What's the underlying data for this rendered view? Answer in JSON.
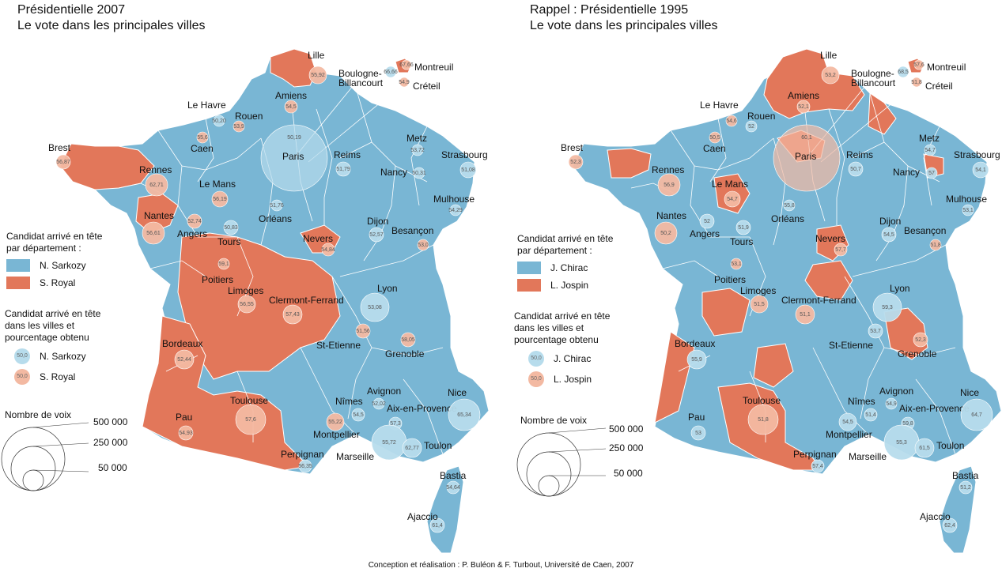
{
  "colors": {
    "blue": "#79b6d4",
    "orange": "#e2775a",
    "light_blue": "#b7dcec",
    "light_orange": "#f3b9a2"
  },
  "left": {
    "title_line1": "Présidentielle 2007",
    "title_line2": "Le vote dans les principales villes",
    "legend": {
      "dept_head": "Candidat arrivé en tête\npar département :",
      "dept_items": [
        "N. Sarkozy",
        "S. Royal"
      ],
      "city_head": "Candidat arrivé en tête\ndans les villes et\npourcentage obtenu",
      "city_items": [
        "N. Sarkozy",
        "S. Royal"
      ],
      "sample_value": "50,0"
    },
    "size_legend": {
      "title": "Nombre de voix",
      "values": [
        "500 000",
        "250 000",
        "50 000"
      ]
    },
    "cities": [
      {
        "name": "Lille",
        "pct": "55,92"
      },
      {
        "name": "Boulogne-\nBillancourt",
        "pct": "66,66"
      },
      {
        "name": "Montreuil",
        "pct": "67,66"
      },
      {
        "name": "Créteil",
        "pct": "54,9"
      },
      {
        "name": "Amiens",
        "pct": "54,5"
      },
      {
        "name": "Le Havre",
        "pct": "50,20"
      },
      {
        "name": "Rouen",
        "pct": "53,9"
      },
      {
        "name": "Caen",
        "pct": "55,6"
      },
      {
        "name": "Brest",
        "pct": "56,87"
      },
      {
        "name": "Rennes",
        "pct": "62,71"
      },
      {
        "name": "Paris",
        "pct": "50,19"
      },
      {
        "name": "Reims",
        "pct": "51,79"
      },
      {
        "name": "Metz",
        "pct": "53,72"
      },
      {
        "name": "Strasbourg",
        "pct": "51,08"
      },
      {
        "name": "Nancy",
        "pct": "50,31"
      },
      {
        "name": "Mulhouse",
        "pct": "54,29"
      },
      {
        "name": "Le Mans",
        "pct": "56,19"
      },
      {
        "name": "Nantes",
        "pct": "56,61"
      },
      {
        "name": "Angers",
        "pct": "52,74"
      },
      {
        "name": "Tours",
        "pct": "50,83"
      },
      {
        "name": "Orléans",
        "pct": "51,76"
      },
      {
        "name": "Dijon",
        "pct": "52,57"
      },
      {
        "name": "Besançon",
        "pct": "53,0"
      },
      {
        "name": "Nevers",
        "pct": "54,84"
      },
      {
        "name": "Poitiers",
        "pct": "59,1"
      },
      {
        "name": "Limoges",
        "pct": "56,55"
      },
      {
        "name": "Clermont-Ferrand",
        "pct": "57,43"
      },
      {
        "name": "Lyon",
        "pct": "53,08"
      },
      {
        "name": "St-Etienne",
        "pct": "51,56"
      },
      {
        "name": "Grenoble",
        "pct": "58,05"
      },
      {
        "name": "Bordeaux",
        "pct": "52,44"
      },
      {
        "name": "Toulouse",
        "pct": "57,6"
      },
      {
        "name": "Pau",
        "pct": "54,93"
      },
      {
        "name": "Nîmes",
        "pct": "54,5"
      },
      {
        "name": "Montpellier",
        "pct": "55,22"
      },
      {
        "name": "Avignon",
        "pct": "52,02"
      },
      {
        "name": "Aix-en-Provence",
        "pct": "57,3"
      },
      {
        "name": "Marseille",
        "pct": "55,72"
      },
      {
        "name": "Toulon",
        "pct": "62,77"
      },
      {
        "name": "Nice",
        "pct": "65,34"
      },
      {
        "name": "Perpignan",
        "pct": "56,35"
      },
      {
        "name": "Bastia",
        "pct": "54,64"
      },
      {
        "name": "Ajaccio",
        "pct": "61,4"
      }
    ]
  },
  "right": {
    "title_line1": "Rappel  :  Présidentielle 1995",
    "title_line2": "Le vote dans les principales villes",
    "legend": {
      "dept_head": "Candidat arrivé en tête\npar département :",
      "dept_items": [
        "J. Chirac",
        "L. Jospin"
      ],
      "city_head": "Candidat arrivé en tête\ndans les villes et\npourcentage obtenu",
      "city_items": [
        "J. Chirac",
        "L. Jospin"
      ],
      "sample_value": "50,0"
    },
    "size_legend": {
      "title": "Nombre de voix",
      "values": [
        "500 000",
        "250 000",
        "50 000"
      ]
    },
    "cities": [
      {
        "name": "Lille",
        "pct": "53,2"
      },
      {
        "name": "Boulogne-\nBillancourt",
        "pct": "68,5"
      },
      {
        "name": "Montreuil",
        "pct": "57,6"
      },
      {
        "name": "Créteil",
        "pct": "51,8"
      },
      {
        "name": "Amiens",
        "pct": "52,1"
      },
      {
        "name": "Le Havre",
        "pct": "54,6"
      },
      {
        "name": "Rouen",
        "pct": "52"
      },
      {
        "name": "Caen",
        "pct": "50,5"
      },
      {
        "name": "Brest",
        "pct": "52,3"
      },
      {
        "name": "Rennes",
        "pct": "56,9"
      },
      {
        "name": "Paris",
        "pct": "60,1"
      },
      {
        "name": "Reims",
        "pct": "50,7"
      },
      {
        "name": "Metz",
        "pct": "54,7"
      },
      {
        "name": "Strasbourg",
        "pct": "54,1"
      },
      {
        "name": "Nancy",
        "pct": "57"
      },
      {
        "name": "Mulhouse",
        "pct": "53,1"
      },
      {
        "name": "Le Mans",
        "pct": "54,7"
      },
      {
        "name": "Nantes",
        "pct": "50,2"
      },
      {
        "name": "Angers",
        "pct": "52"
      },
      {
        "name": "Tours",
        "pct": "51,9"
      },
      {
        "name": "Orléans",
        "pct": "55,8"
      },
      {
        "name": "Dijon",
        "pct": "54,5"
      },
      {
        "name": "Besançon",
        "pct": "51,8"
      },
      {
        "name": "Nevers",
        "pct": "57,7"
      },
      {
        "name": "Poitiers",
        "pct": "53,1"
      },
      {
        "name": "Limoges",
        "pct": "51,5"
      },
      {
        "name": "Clermont-Ferrand",
        "pct": "51,1"
      },
      {
        "name": "Lyon",
        "pct": "59,3"
      },
      {
        "name": "St-Etienne",
        "pct": "53,7"
      },
      {
        "name": "Grenoble",
        "pct": "52,3"
      },
      {
        "name": "Bordeaux",
        "pct": "55,9"
      },
      {
        "name": "Toulouse",
        "pct": "51,8"
      },
      {
        "name": "Pau",
        "pct": "53"
      },
      {
        "name": "Nîmes",
        "pct": "51,4"
      },
      {
        "name": "Montpellier",
        "pct": "54,5"
      },
      {
        "name": "Avignon",
        "pct": "54,9"
      },
      {
        "name": "Aix-en-Provence",
        "pct": "59,8"
      },
      {
        "name": "Marseille",
        "pct": "55,3"
      },
      {
        "name": "Toulon",
        "pct": "61,5"
      },
      {
        "name": "Nice",
        "pct": "64,7"
      },
      {
        "name": "Perpignan",
        "pct": "57,4"
      },
      {
        "name": "Bastia",
        "pct": "51,2"
      },
      {
        "name": "Ajaccio",
        "pct": "62,4"
      }
    ]
  },
  "footer": "Conception et réalisation : P. Buléon & F. Turbout, Université de Caen, 2007"
}
